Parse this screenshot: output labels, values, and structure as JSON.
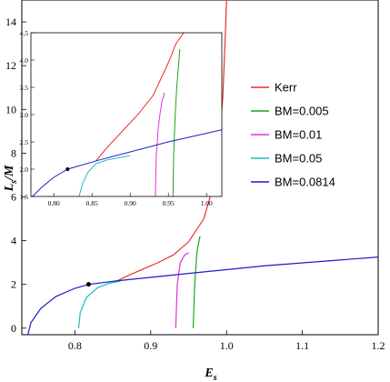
{
  "chart_data": {
    "type": "line",
    "xlabel": "E",
    "xlabel_sub": "s",
    "ylabel": "L",
    "ylabel_sub": "s",
    "ylabel_suffix": "/M",
    "xlim": [
      0.73,
      1.2
    ],
    "ylim": [
      -0.3,
      15
    ],
    "x_ticks": [
      0.8,
      0.9,
      1.0,
      1.1,
      1.2
    ],
    "x_tick_labels": [
      "0.8",
      "0.9",
      "1.0",
      "1.1",
      "1.2"
    ],
    "y_ticks": [
      0,
      2,
      4,
      6,
      8,
      10,
      12,
      14
    ],
    "y_tick_labels": [
      "0",
      "2",
      "4",
      "6",
      "8",
      "10",
      "12",
      "14"
    ],
    "legend_position": "right",
    "series": [
      {
        "name": "Kerr",
        "color": "#e8302c",
        "x": [
          0.855,
          0.87,
          0.89,
          0.91,
          0.93,
          0.95,
          0.97,
          0.98,
          0.99,
          0.995,
          0.9985,
          1.0
        ],
        "y": [
          2.15,
          2.4,
          2.7,
          3.0,
          3.35,
          3.95,
          5.0,
          6.2,
          8.5,
          10.5,
          13.5,
          15.0
        ]
      },
      {
        "name": "BM=0.005",
        "color": "#1fa01f",
        "x": [
          0.956,
          0.958,
          0.961,
          0.965
        ],
        "y": [
          0.0,
          2.0,
          3.5,
          4.2
        ]
      },
      {
        "name": "BM=0.01",
        "color": "#e030e0",
        "x": [
          0.933,
          0.935,
          0.939,
          0.945,
          0.95
        ],
        "y": [
          0.0,
          2.0,
          3.0,
          3.35,
          3.45
        ]
      },
      {
        "name": "BM=0.05",
        "color": "#20b8c8",
        "x": [
          0.805,
          0.807,
          0.815,
          0.83,
          0.845,
          0.86
        ],
        "y": [
          0.0,
          0.7,
          1.4,
          1.85,
          2.05,
          2.15
        ]
      },
      {
        "name": "BM=0.0814",
        "color": "#1c1ccc",
        "x": [
          0.738,
          0.742,
          0.755,
          0.775,
          0.8,
          0.818,
          0.86,
          0.95,
          1.05,
          1.2
        ],
        "y": [
          -0.3,
          0.25,
          0.9,
          1.45,
          1.82,
          2.0,
          2.18,
          2.5,
          2.85,
          3.25
        ]
      }
    ],
    "marker": {
      "x": 0.818,
      "y": 2.0,
      "color": "#000000"
    },
    "inset": {
      "xlim": [
        0.77,
        1.02
      ],
      "ylim": [
        1.5,
        4.5
      ],
      "x_ticks": [
        0.8,
        0.85,
        0.9,
        0.95,
        1.0
      ],
      "x_tick_labels": [
        "0.80",
        "0.85",
        "0.90",
        "0.95",
        "1.00"
      ],
      "y_ticks": [
        1.5,
        2.0,
        2.5,
        3.0,
        3.5,
        4.0,
        4.5
      ],
      "y_tick_labels": [
        "1.5",
        "2.0",
        "2.5",
        "3.0",
        "3.5",
        "4.0",
        "4.5"
      ],
      "series": [
        {
          "name": "Kerr",
          "color": "#e8302c",
          "x": [
            0.855,
            0.87,
            0.89,
            0.91,
            0.93,
            0.95,
            0.96,
            0.97
          ],
          "y": [
            2.15,
            2.4,
            2.7,
            3.0,
            3.35,
            3.95,
            4.3,
            4.5
          ]
        },
        {
          "name": "BM=0.005",
          "color": "#1fa01f",
          "x": [
            0.956,
            0.957,
            0.959,
            0.961,
            0.965
          ],
          "y": [
            1.5,
            2.3,
            3.0,
            3.5,
            4.2
          ]
        },
        {
          "name": "BM=0.01",
          "color": "#e030e0",
          "x": [
            0.933,
            0.934,
            0.937,
            0.941,
            0.945
          ],
          "y": [
            1.5,
            2.2,
            2.8,
            3.2,
            3.4
          ]
        },
        {
          "name": "BM=0.05",
          "color": "#20b8c8",
          "x": [
            0.833,
            0.838,
            0.845,
            0.855,
            0.87,
            0.9
          ],
          "y": [
            1.5,
            1.75,
            1.95,
            2.1,
            2.17,
            2.25
          ]
        },
        {
          "name": "BM=0.0814",
          "color": "#1c1ccc",
          "x": [
            0.772,
            0.785,
            0.8,
            0.818,
            0.86,
            0.95,
            1.02
          ],
          "y": [
            1.5,
            1.68,
            1.85,
            2.0,
            2.17,
            2.5,
            2.72
          ]
        }
      ],
      "marker": {
        "x": 0.818,
        "y": 2.0,
        "color": "#000000"
      }
    }
  }
}
